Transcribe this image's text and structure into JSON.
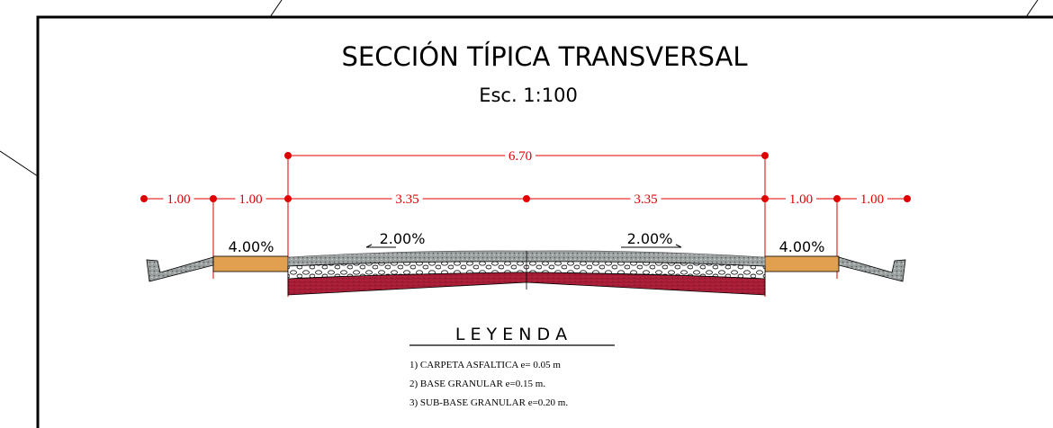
{
  "title": "SECCIÓN TÍPICA TRANSVERSAL",
  "subtitle": "Esc. 1:100",
  "dimensions": {
    "total": "6.70",
    "segments": [
      "1.00",
      "1.00",
      "3.35",
      "3.35",
      "1.00",
      "1.00"
    ]
  },
  "slopes": {
    "left_shoulder": "4.00%",
    "left_lane": "2.00%",
    "right_lane": "2.00%",
    "right_shoulder": "4.00%"
  },
  "legend": {
    "title": "L E Y E N D A",
    "items": [
      "1) CARPETA ASFALTICA e= 0.05 m",
      "2) BASE GRANULAR   e=0.15 m.",
      "3) SUB-BASE GRANULAR e=0.20 m."
    ]
  }
}
